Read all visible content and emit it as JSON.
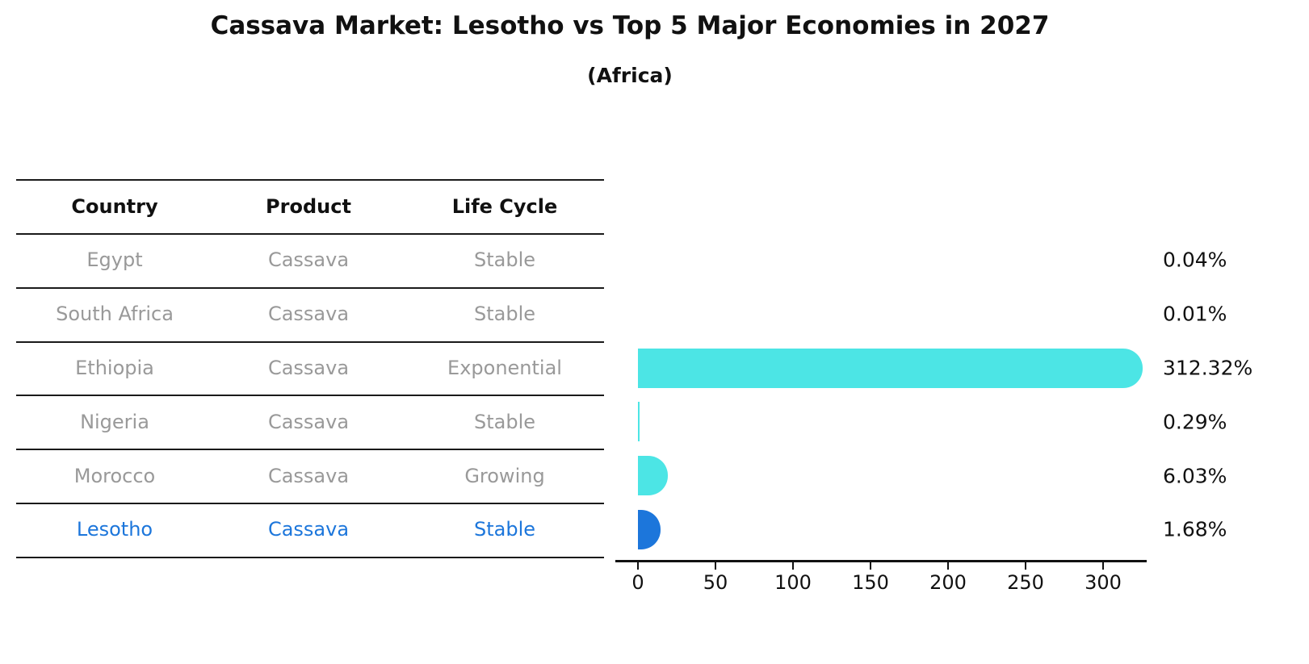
{
  "header": {
    "title": "Cassava Market: Lesotho vs Top 5 Major Economies in 2027",
    "subtitle": "(Africa)"
  },
  "chart_data": {
    "type": "bar",
    "orientation": "horizontal",
    "title": "Cassava Market: Lesotho vs Top 5 Major Economies in 2027",
    "subtitle": "(Africa)",
    "columns": [
      "Country",
      "Product",
      "Life Cycle"
    ],
    "rows": [
      {
        "country": "Egypt",
        "product": "Cassava",
        "life_cycle": "Stable",
        "value": 0.04,
        "label": "0.04%",
        "highlight": false
      },
      {
        "country": "South Africa",
        "product": "Cassava",
        "life_cycle": "Stable",
        "value": 0.01,
        "label": "0.01%",
        "highlight": false
      },
      {
        "country": "Ethiopia",
        "product": "Cassava",
        "life_cycle": "Exponential",
        "value": 312.32,
        "label": "312.32%",
        "highlight": false
      },
      {
        "country": "Nigeria",
        "product": "Cassava",
        "life_cycle": "Stable",
        "value": 0.29,
        "label": "0.29%",
        "highlight": false
      },
      {
        "country": "Morocco",
        "product": "Cassava",
        "life_cycle": "Growing",
        "value": 6.03,
        "label": "6.03%",
        "highlight": false
      },
      {
        "country": "Lesotho",
        "product": "Cassava",
        "life_cycle": "Stable",
        "value": 1.68,
        "label": "1.68%",
        "highlight": true
      }
    ],
    "x_ticks": [
      0,
      50,
      100,
      150,
      200,
      250,
      300
    ],
    "xlim": [
      0,
      328
    ],
    "grid": false,
    "legend": "none",
    "colors": {
      "bar": "#4ce5e5",
      "highlight_bar": "#1c76db",
      "row_text": "#999999",
      "highlight_text": "#1c76db",
      "header_text": "#111111"
    }
  }
}
